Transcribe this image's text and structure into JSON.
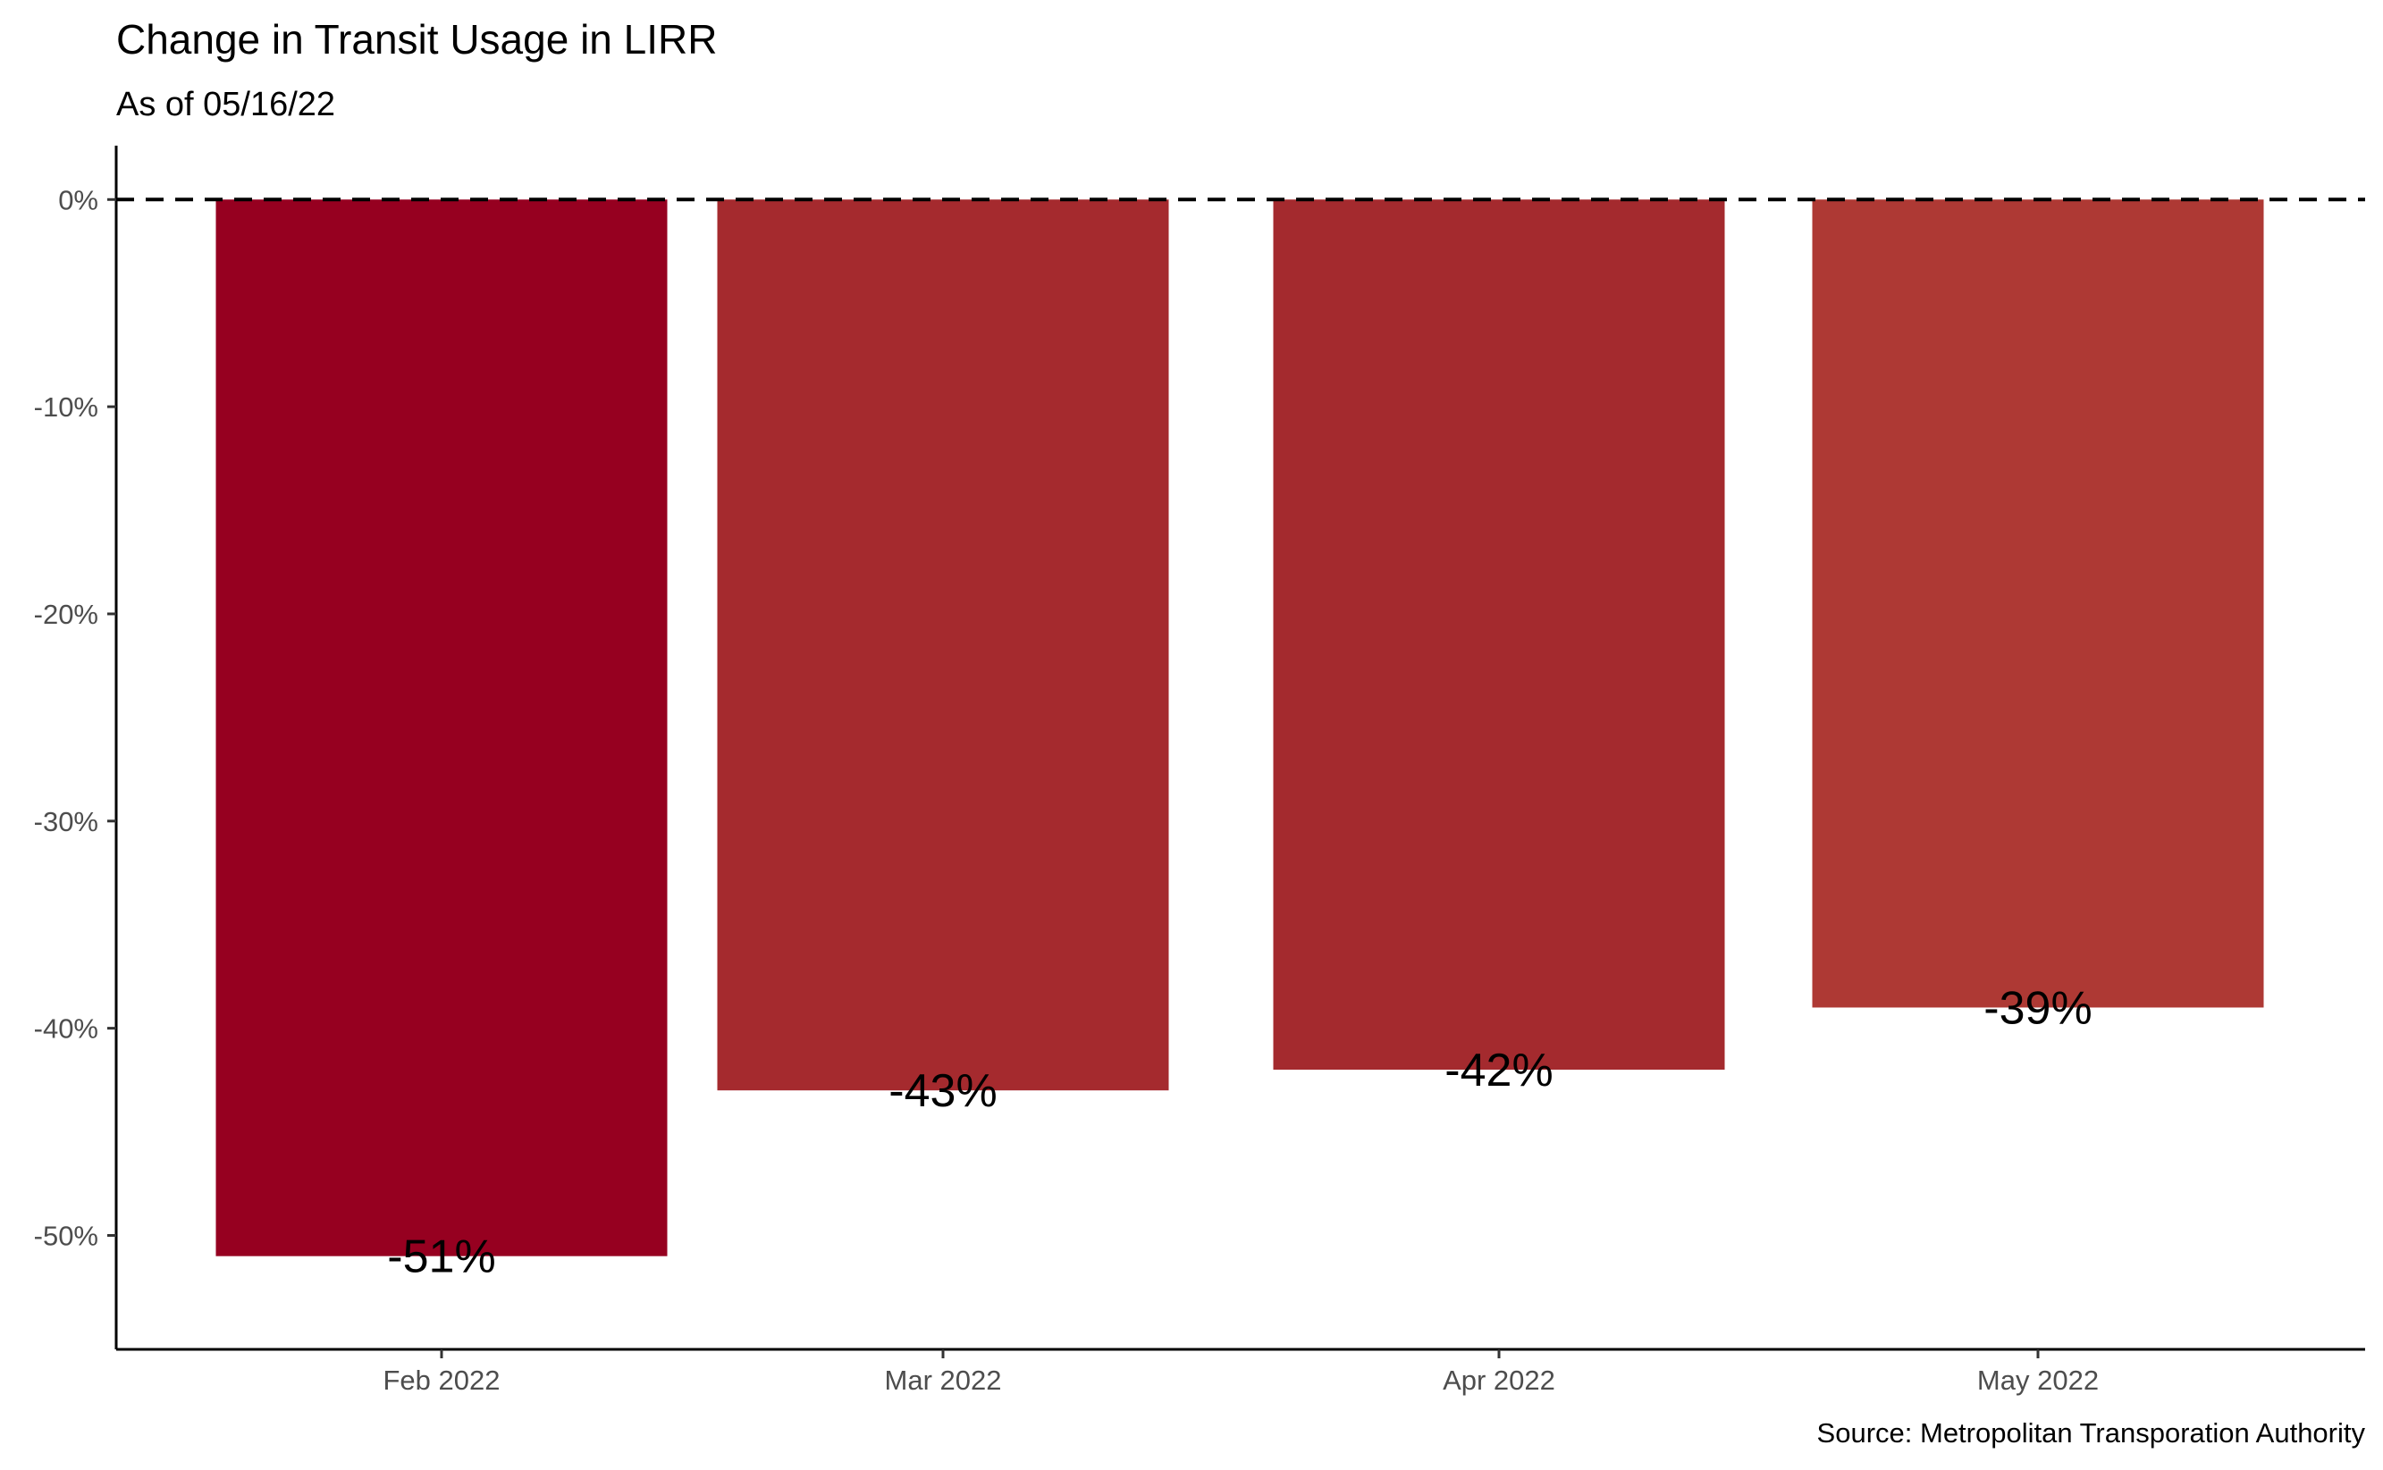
{
  "chart_data": {
    "type": "bar",
    "title": "Change in Transit Usage in LIRR",
    "subtitle": "As of 05/16/22",
    "caption": "Source: Metropolitan Transporation Authority",
    "xlabel": "",
    "ylabel": "",
    "categories": [
      "Feb 2022",
      "Mar 2022",
      "Apr 2022",
      "May 2022"
    ],
    "values": [
      -51,
      -43,
      -42,
      -39
    ],
    "data_labels": [
      "-51%",
      "-43%",
      "-42%",
      "-39%"
    ],
    "bar_colors": [
      "#960020",
      "#a52a2e",
      "#a42a2e",
      "#ae3934"
    ],
    "ylim": [
      -55.5,
      2.6
    ],
    "yticks": [
      0,
      -10,
      -20,
      -30,
      -40,
      -50
    ],
    "ytick_labels": [
      "0%",
      "-10%",
      "-20%",
      "-30%",
      "-40%",
      "-50%"
    ],
    "reference_line": {
      "value": 0,
      "style": "dashed"
    },
    "grid": false,
    "legend": "none"
  }
}
